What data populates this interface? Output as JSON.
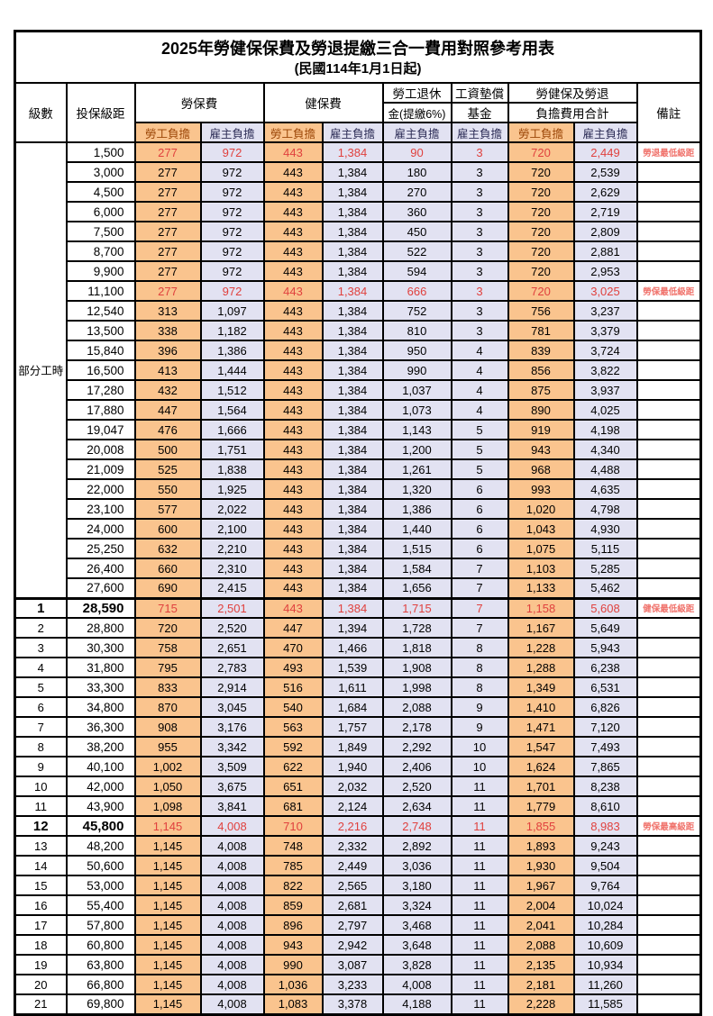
{
  "title": "2025年勞健保保費及勞退提繳三合一費用對照參考用表",
  "subtitle": "(民國114年1月1日起)",
  "colors": {
    "employee_bg": "#FAC48E",
    "employer_bg": "#E2E2F2",
    "highlight_value_red": "#E0413E",
    "remark_red": "#F0726B",
    "employee_header_text": "#9C4708",
    "employer_header_text": "#2B2B55",
    "border": "#000000"
  },
  "columns": {
    "level": "級數",
    "bracket": "投保級距",
    "labor_insurance": "勞保費",
    "health_insurance": "健保費",
    "pension_line1": "勞工退休",
    "pension_line2": "金(提繳6%)",
    "wage_fund_line1": "工資墊償",
    "wage_fund_line2": "基金",
    "total_line1": "勞健保及勞退",
    "total_line2": "負擔費用合計",
    "remark": "備註",
    "employee": "勞工負擔",
    "employer": "雇主負擔"
  },
  "part_time_label": "部分工時",
  "part_time_rowspan": 23,
  "rows": [
    {
      "level": "",
      "bracket": "1,500",
      "values": [
        "277",
        "972",
        "443",
        "1,384",
        "90",
        "3",
        "720",
        "2,449"
      ],
      "remark": "勞退最低級距",
      "red": true,
      "emphasis": false,
      "sep": false
    },
    {
      "level": "",
      "bracket": "3,000",
      "values": [
        "277",
        "972",
        "443",
        "1,384",
        "180",
        "3",
        "720",
        "2,539"
      ],
      "remark": "",
      "red": false,
      "emphasis": false,
      "sep": false
    },
    {
      "level": "",
      "bracket": "4,500",
      "values": [
        "277",
        "972",
        "443",
        "1,384",
        "270",
        "3",
        "720",
        "2,629"
      ],
      "remark": "",
      "red": false,
      "emphasis": false,
      "sep": false
    },
    {
      "level": "",
      "bracket": "6,000",
      "values": [
        "277",
        "972",
        "443",
        "1,384",
        "360",
        "3",
        "720",
        "2,719"
      ],
      "remark": "",
      "red": false,
      "emphasis": false,
      "sep": false
    },
    {
      "level": "",
      "bracket": "7,500",
      "values": [
        "277",
        "972",
        "443",
        "1,384",
        "450",
        "3",
        "720",
        "2,809"
      ],
      "remark": "",
      "red": false,
      "emphasis": false,
      "sep": false
    },
    {
      "level": "",
      "bracket": "8,700",
      "values": [
        "277",
        "972",
        "443",
        "1,384",
        "522",
        "3",
        "720",
        "2,881"
      ],
      "remark": "",
      "red": false,
      "emphasis": false,
      "sep": false
    },
    {
      "level": "",
      "bracket": "9,900",
      "values": [
        "277",
        "972",
        "443",
        "1,384",
        "594",
        "3",
        "720",
        "2,953"
      ],
      "remark": "",
      "red": false,
      "emphasis": false,
      "sep": false
    },
    {
      "level": "",
      "bracket": "11,100",
      "values": [
        "277",
        "972",
        "443",
        "1,384",
        "666",
        "3",
        "720",
        "3,025"
      ],
      "remark": "勞保最低級距",
      "red": true,
      "emphasis": false,
      "sep": false
    },
    {
      "level": "",
      "bracket": "12,540",
      "values": [
        "313",
        "1,097",
        "443",
        "1,384",
        "752",
        "3",
        "756",
        "3,237"
      ],
      "remark": "",
      "red": false,
      "emphasis": false,
      "sep": false
    },
    {
      "level": "",
      "bracket": "13,500",
      "values": [
        "338",
        "1,182",
        "443",
        "1,384",
        "810",
        "3",
        "781",
        "3,379"
      ],
      "remark": "",
      "red": false,
      "emphasis": false,
      "sep": false
    },
    {
      "level": "",
      "bracket": "15,840",
      "values": [
        "396",
        "1,386",
        "443",
        "1,384",
        "950",
        "4",
        "839",
        "3,724"
      ],
      "remark": "",
      "red": false,
      "emphasis": false,
      "sep": false
    },
    {
      "level": "",
      "bracket": "16,500",
      "values": [
        "413",
        "1,444",
        "443",
        "1,384",
        "990",
        "4",
        "856",
        "3,822"
      ],
      "remark": "",
      "red": false,
      "emphasis": false,
      "sep": false
    },
    {
      "level": "",
      "bracket": "17,280",
      "values": [
        "432",
        "1,512",
        "443",
        "1,384",
        "1,037",
        "4",
        "875",
        "3,937"
      ],
      "remark": "",
      "red": false,
      "emphasis": false,
      "sep": false
    },
    {
      "level": "",
      "bracket": "17,880",
      "values": [
        "447",
        "1,564",
        "443",
        "1,384",
        "1,073",
        "4",
        "890",
        "4,025"
      ],
      "remark": "",
      "red": false,
      "emphasis": false,
      "sep": false
    },
    {
      "level": "",
      "bracket": "19,047",
      "values": [
        "476",
        "1,666",
        "443",
        "1,384",
        "1,143",
        "5",
        "919",
        "4,198"
      ],
      "remark": "",
      "red": false,
      "emphasis": false,
      "sep": false
    },
    {
      "level": "",
      "bracket": "20,008",
      "values": [
        "500",
        "1,751",
        "443",
        "1,384",
        "1,200",
        "5",
        "943",
        "4,340"
      ],
      "remark": "",
      "red": false,
      "emphasis": false,
      "sep": false
    },
    {
      "level": "",
      "bracket": "21,009",
      "values": [
        "525",
        "1,838",
        "443",
        "1,384",
        "1,261",
        "5",
        "968",
        "4,488"
      ],
      "remark": "",
      "red": false,
      "emphasis": false,
      "sep": false
    },
    {
      "level": "",
      "bracket": "22,000",
      "values": [
        "550",
        "1,925",
        "443",
        "1,384",
        "1,320",
        "6",
        "993",
        "4,635"
      ],
      "remark": "",
      "red": false,
      "emphasis": false,
      "sep": false
    },
    {
      "level": "",
      "bracket": "23,100",
      "values": [
        "577",
        "2,022",
        "443",
        "1,384",
        "1,386",
        "6",
        "1,020",
        "4,798"
      ],
      "remark": "",
      "red": false,
      "emphasis": false,
      "sep": false
    },
    {
      "level": "",
      "bracket": "24,000",
      "values": [
        "600",
        "2,100",
        "443",
        "1,384",
        "1,440",
        "6",
        "1,043",
        "4,930"
      ],
      "remark": "",
      "red": false,
      "emphasis": false,
      "sep": false
    },
    {
      "level": "",
      "bracket": "25,250",
      "values": [
        "632",
        "2,210",
        "443",
        "1,384",
        "1,515",
        "6",
        "1,075",
        "5,115"
      ],
      "remark": "",
      "red": false,
      "emphasis": false,
      "sep": false
    },
    {
      "level": "",
      "bracket": "26,400",
      "values": [
        "660",
        "2,310",
        "443",
        "1,384",
        "1,584",
        "7",
        "1,103",
        "5,285"
      ],
      "remark": "",
      "red": false,
      "emphasis": false,
      "sep": false
    },
    {
      "level": "",
      "bracket": "27,600",
      "values": [
        "690",
        "2,415",
        "443",
        "1,384",
        "1,656",
        "7",
        "1,133",
        "5,462"
      ],
      "remark": "",
      "red": false,
      "emphasis": false,
      "sep": false
    },
    {
      "level": "1",
      "bracket": "28,590",
      "values": [
        "715",
        "2,501",
        "443",
        "1,384",
        "1,715",
        "7",
        "1,158",
        "5,608"
      ],
      "remark": "健保最低級距",
      "red": true,
      "emphasis": true,
      "sep": true
    },
    {
      "level": "2",
      "bracket": "28,800",
      "values": [
        "720",
        "2,520",
        "447",
        "1,394",
        "1,728",
        "7",
        "1,167",
        "5,649"
      ],
      "remark": "",
      "red": false,
      "emphasis": false,
      "sep": false
    },
    {
      "level": "3",
      "bracket": "30,300",
      "values": [
        "758",
        "2,651",
        "470",
        "1,466",
        "1,818",
        "8",
        "1,228",
        "5,943"
      ],
      "remark": "",
      "red": false,
      "emphasis": false,
      "sep": false
    },
    {
      "level": "4",
      "bracket": "31,800",
      "values": [
        "795",
        "2,783",
        "493",
        "1,539",
        "1,908",
        "8",
        "1,288",
        "6,238"
      ],
      "remark": "",
      "red": false,
      "emphasis": false,
      "sep": false
    },
    {
      "level": "5",
      "bracket": "33,300",
      "values": [
        "833",
        "2,914",
        "516",
        "1,611",
        "1,998",
        "8",
        "1,349",
        "6,531"
      ],
      "remark": "",
      "red": false,
      "emphasis": false,
      "sep": false
    },
    {
      "level": "6",
      "bracket": "34,800",
      "values": [
        "870",
        "3,045",
        "540",
        "1,684",
        "2,088",
        "9",
        "1,410",
        "6,826"
      ],
      "remark": "",
      "red": false,
      "emphasis": false,
      "sep": false
    },
    {
      "level": "7",
      "bracket": "36,300",
      "values": [
        "908",
        "3,176",
        "563",
        "1,757",
        "2,178",
        "9",
        "1,471",
        "7,120"
      ],
      "remark": "",
      "red": false,
      "emphasis": false,
      "sep": false
    },
    {
      "level": "8",
      "bracket": "38,200",
      "values": [
        "955",
        "3,342",
        "592",
        "1,849",
        "2,292",
        "10",
        "1,547",
        "7,493"
      ],
      "remark": "",
      "red": false,
      "emphasis": false,
      "sep": false
    },
    {
      "level": "9",
      "bracket": "40,100",
      "values": [
        "1,002",
        "3,509",
        "622",
        "1,940",
        "2,406",
        "10",
        "1,624",
        "7,865"
      ],
      "remark": "",
      "red": false,
      "emphasis": false,
      "sep": false
    },
    {
      "level": "10",
      "bracket": "42,000",
      "values": [
        "1,050",
        "3,675",
        "651",
        "2,032",
        "2,520",
        "11",
        "1,701",
        "8,238"
      ],
      "remark": "",
      "red": false,
      "emphasis": false,
      "sep": false
    },
    {
      "level": "11",
      "bracket": "43,900",
      "values": [
        "1,098",
        "3,841",
        "681",
        "2,124",
        "2,634",
        "11",
        "1,779",
        "8,610"
      ],
      "remark": "",
      "red": false,
      "emphasis": false,
      "sep": false
    },
    {
      "level": "12",
      "bracket": "45,800",
      "values": [
        "1,145",
        "4,008",
        "710",
        "2,216",
        "2,748",
        "11",
        "1,855",
        "8,983"
      ],
      "remark": "勞保最高級距",
      "red": true,
      "emphasis": true,
      "sep": false
    },
    {
      "level": "13",
      "bracket": "48,200",
      "values": [
        "1,145",
        "4,008",
        "748",
        "2,332",
        "2,892",
        "11",
        "1,893",
        "9,243"
      ],
      "remark": "",
      "red": false,
      "emphasis": false,
      "sep": false
    },
    {
      "level": "14",
      "bracket": "50,600",
      "values": [
        "1,145",
        "4,008",
        "785",
        "2,449",
        "3,036",
        "11",
        "1,930",
        "9,504"
      ],
      "remark": "",
      "red": false,
      "emphasis": false,
      "sep": false
    },
    {
      "level": "15",
      "bracket": "53,000",
      "values": [
        "1,145",
        "4,008",
        "822",
        "2,565",
        "3,180",
        "11",
        "1,967",
        "9,764"
      ],
      "remark": "",
      "red": false,
      "emphasis": false,
      "sep": false
    },
    {
      "level": "16",
      "bracket": "55,400",
      "values": [
        "1,145",
        "4,008",
        "859",
        "2,681",
        "3,324",
        "11",
        "2,004",
        "10,024"
      ],
      "remark": "",
      "red": false,
      "emphasis": false,
      "sep": false
    },
    {
      "level": "17",
      "bracket": "57,800",
      "values": [
        "1,145",
        "4,008",
        "896",
        "2,797",
        "3,468",
        "11",
        "2,041",
        "10,284"
      ],
      "remark": "",
      "red": false,
      "emphasis": false,
      "sep": false
    },
    {
      "level": "18",
      "bracket": "60,800",
      "values": [
        "1,145",
        "4,008",
        "943",
        "2,942",
        "3,648",
        "11",
        "2,088",
        "10,609"
      ],
      "remark": "",
      "red": false,
      "emphasis": false,
      "sep": false
    },
    {
      "level": "19",
      "bracket": "63,800",
      "values": [
        "1,145",
        "4,008",
        "990",
        "3,087",
        "3,828",
        "11",
        "2,135",
        "10,934"
      ],
      "remark": "",
      "red": false,
      "emphasis": false,
      "sep": false
    },
    {
      "level": "20",
      "bracket": "66,800",
      "values": [
        "1,145",
        "4,008",
        "1,036",
        "3,233",
        "4,008",
        "11",
        "2,181",
        "11,260"
      ],
      "remark": "",
      "red": false,
      "emphasis": false,
      "sep": false
    },
    {
      "level": "21",
      "bracket": "69,800",
      "values": [
        "1,145",
        "4,008",
        "1,083",
        "3,378",
        "4,188",
        "11",
        "2,228",
        "11,585"
      ],
      "remark": "",
      "red": false,
      "emphasis": false,
      "sep": false
    }
  ]
}
